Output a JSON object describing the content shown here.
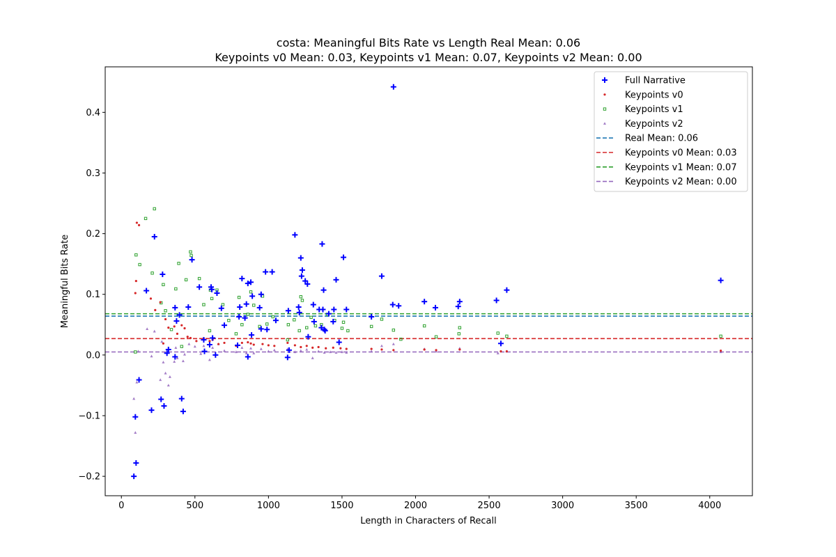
{
  "chart_data": {
    "type": "scatter",
    "title_line1": "costa: Meaningful Bits Rate vs Length Real Mean: 0.06",
    "title_line2": "Keypoints v0 Mean: 0.03, Keypoints v1 Mean: 0.07, Keypoints v2 Mean: 0.00",
    "xlabel": "Length in Characters of Recall",
    "ylabel": "Meaningful Bits Rate",
    "xlim": [
      -110,
      4290
    ],
    "ylim": [
      -0.232,
      0.475
    ],
    "xticks": [
      0,
      500,
      1000,
      1500,
      2000,
      2500,
      3000,
      3500,
      4000
    ],
    "xtick_labels": [
      "0",
      "500",
      "1000",
      "1500",
      "2000",
      "2500",
      "3000",
      "3500",
      "4000"
    ],
    "yticks": [
      -0.2,
      -0.1,
      0.0,
      0.1,
      0.2,
      0.3,
      0.4
    ],
    "ytick_labels": [
      "−0.2",
      "−0.1",
      "0.0",
      "0.1",
      "0.2",
      "0.3",
      "0.4"
    ],
    "grid": false,
    "legend_position": "top-right",
    "series": [
      {
        "name": "Full Narrative",
        "marker": "plus",
        "color": "#0000ff",
        "points": [
          [
            85,
            -0.2
          ],
          [
            100,
            -0.178
          ],
          [
            95,
            -0.102
          ],
          [
            120,
            -0.041
          ],
          [
            170,
            0.106
          ],
          [
            205,
            -0.091
          ],
          [
            225,
            0.195
          ],
          [
            270,
            -0.073
          ],
          [
            280,
            0.133
          ],
          [
            290,
            -0.084
          ],
          [
            310,
            0.003
          ],
          [
            320,
            0.009
          ],
          [
            365,
            0.078
          ],
          [
            365,
            -0.003
          ],
          [
            375,
            0.056
          ],
          [
            395,
            0.066
          ],
          [
            410,
            -0.072
          ],
          [
            420,
            -0.093
          ],
          [
            455,
            0.079
          ],
          [
            480,
            0.157
          ],
          [
            530,
            0.112
          ],
          [
            560,
            0.025
          ],
          [
            565,
            0.006
          ],
          [
            600,
            0.017
          ],
          [
            610,
            0.112
          ],
          [
            615,
            0.108
          ],
          [
            620,
            0.028
          ],
          [
            640,
            0.0
          ],
          [
            650,
            0.102
          ],
          [
            680,
            0.077
          ],
          [
            700,
            0.049
          ],
          [
            790,
            0.016
          ],
          [
            800,
            0.063
          ],
          [
            805,
            0.079
          ],
          [
            820,
            0.126
          ],
          [
            840,
            0.061
          ],
          [
            850,
            0.084
          ],
          [
            860,
            0.118
          ],
          [
            860,
            -0.003
          ],
          [
            880,
            0.12
          ],
          [
            885,
            0.033
          ],
          [
            890,
            0.097
          ],
          [
            940,
            0.078
          ],
          [
            950,
            0.043
          ],
          [
            950,
            0.1
          ],
          [
            980,
            0.137
          ],
          [
            990,
            0.042
          ],
          [
            1025,
            0.137
          ],
          [
            1050,
            0.057
          ],
          [
            1130,
            -0.004
          ],
          [
            1135,
            0.073
          ],
          [
            1140,
            0.008
          ],
          [
            1180,
            0.198
          ],
          [
            1205,
            0.079
          ],
          [
            1210,
            0.07
          ],
          [
            1220,
            0.16
          ],
          [
            1225,
            0.13
          ],
          [
            1230,
            0.14
          ],
          [
            1250,
            0.122
          ],
          [
            1265,
            0.117
          ],
          [
            1270,
            0.03
          ],
          [
            1305,
            0.083
          ],
          [
            1310,
            0.055
          ],
          [
            1345,
            0.075
          ],
          [
            1360,
            0.045
          ],
          [
            1365,
            0.183
          ],
          [
            1370,
            0.075
          ],
          [
            1375,
            0.107
          ],
          [
            1380,
            0.042
          ],
          [
            1385,
            0.04
          ],
          [
            1410,
            0.068
          ],
          [
            1440,
            0.055
          ],
          [
            1445,
            0.075
          ],
          [
            1460,
            0.124
          ],
          [
            1480,
            0.021
          ],
          [
            1510,
            0.161
          ],
          [
            1530,
            0.075
          ],
          [
            1700,
            0.063
          ],
          [
            1770,
            0.13
          ],
          [
            1845,
            0.083
          ],
          [
            1850,
            0.442
          ],
          [
            1885,
            0.081
          ],
          [
            2060,
            0.088
          ],
          [
            2135,
            0.078
          ],
          [
            2290,
            0.08
          ],
          [
            2300,
            0.088
          ],
          [
            2550,
            0.09
          ],
          [
            2580,
            0.019
          ],
          [
            2620,
            0.107
          ],
          [
            4075,
            0.123
          ]
        ]
      },
      {
        "name": "Keypoints v0",
        "marker": "dot",
        "color": "#d62728",
        "points": [
          [
            95,
            0.102
          ],
          [
            100,
            0.122
          ],
          [
            105,
            0.218
          ],
          [
            120,
            0.214
          ],
          [
            200,
            0.093
          ],
          [
            230,
            0.074
          ],
          [
            265,
            0.087
          ],
          [
            285,
            0.019
          ],
          [
            300,
            0.059
          ],
          [
            320,
            0.045
          ],
          [
            360,
            0.047
          ],
          [
            380,
            0.035
          ],
          [
            410,
            0.049
          ],
          [
            430,
            0.044
          ],
          [
            450,
            0.03
          ],
          [
            470,
            0.028
          ],
          [
            510,
            0.023
          ],
          [
            560,
            0.027
          ],
          [
            600,
            0.023
          ],
          [
            620,
            0.025
          ],
          [
            660,
            0.018
          ],
          [
            700,
            0.02
          ],
          [
            780,
            0.015
          ],
          [
            820,
            0.02
          ],
          [
            860,
            0.021
          ],
          [
            880,
            0.019
          ],
          [
            900,
            0.017
          ],
          [
            960,
            0.018
          ],
          [
            1000,
            0.016
          ],
          [
            1040,
            0.015
          ],
          [
            1130,
            0.02
          ],
          [
            1180,
            0.016
          ],
          [
            1220,
            0.013
          ],
          [
            1260,
            0.015
          ],
          [
            1300,
            0.012
          ],
          [
            1340,
            0.013
          ],
          [
            1390,
            0.011
          ],
          [
            1440,
            0.012
          ],
          [
            1490,
            0.011
          ],
          [
            1530,
            0.01
          ],
          [
            1700,
            0.01
          ],
          [
            1770,
            0.009
          ],
          [
            1850,
            0.008
          ],
          [
            2060,
            0.009
          ],
          [
            2140,
            0.008
          ],
          [
            2300,
            0.009
          ],
          [
            2580,
            0.006
          ],
          [
            2620,
            0.006
          ],
          [
            4075,
            0.007
          ]
        ]
      },
      {
        "name": "Keypoints v1",
        "marker": "square",
        "color": "#2ca02c",
        "points": [
          [
            95,
            0.005
          ],
          [
            100,
            0.165
          ],
          [
            125,
            0.149
          ],
          [
            165,
            0.225
          ],
          [
            210,
            0.135
          ],
          [
            225,
            0.241
          ],
          [
            270,
            0.086
          ],
          [
            285,
            0.116
          ],
          [
            300,
            0.073
          ],
          [
            340,
            0.042
          ],
          [
            370,
            0.109
          ],
          [
            390,
            0.151
          ],
          [
            410,
            0.014
          ],
          [
            440,
            0.124
          ],
          [
            470,
            0.17
          ],
          [
            475,
            0.164
          ],
          [
            530,
            0.126
          ],
          [
            560,
            0.083
          ],
          [
            600,
            0.04
          ],
          [
            605,
            0.107
          ],
          [
            615,
            0.093
          ],
          [
            650,
            0.107
          ],
          [
            690,
            0.083
          ],
          [
            730,
            0.057
          ],
          [
            780,
            0.035
          ],
          [
            800,
            0.095
          ],
          [
            820,
            0.05
          ],
          [
            860,
            0.067
          ],
          [
            880,
            0.104
          ],
          [
            900,
            0.082
          ],
          [
            940,
            0.047
          ],
          [
            960,
            0.097
          ],
          [
            990,
            0.051
          ],
          [
            1030,
            0.063
          ],
          [
            1130,
            0.025
          ],
          [
            1135,
            0.05
          ],
          [
            1175,
            0.058
          ],
          [
            1210,
            0.04
          ],
          [
            1220,
            0.096
          ],
          [
            1230,
            0.09
          ],
          [
            1260,
            0.045
          ],
          [
            1290,
            0.062
          ],
          [
            1320,
            0.048
          ],
          [
            1360,
            0.05
          ],
          [
            1400,
            0.067
          ],
          [
            1450,
            0.057
          ],
          [
            1500,
            0.044
          ],
          [
            1510,
            0.054
          ],
          [
            1540,
            0.04
          ],
          [
            1700,
            0.047
          ],
          [
            1770,
            0.059
          ],
          [
            1850,
            0.041
          ],
          [
            1900,
            0.026
          ],
          [
            2060,
            0.048
          ],
          [
            2140,
            0.03
          ],
          [
            2300,
            0.045
          ],
          [
            2295,
            0.035
          ],
          [
            2560,
            0.036
          ],
          [
            2620,
            0.031
          ],
          [
            4075,
            0.031
          ]
        ]
      },
      {
        "name": "Keypoints v2",
        "marker": "triangle",
        "color": "#9467bd",
        "points": [
          [
            85,
            -0.072
          ],
          [
            95,
            -0.128
          ],
          [
            105,
            -0.045
          ],
          [
            115,
            0.006
          ],
          [
            175,
            0.043
          ],
          [
            205,
            -0.002
          ],
          [
            225,
            0.039
          ],
          [
            265,
            -0.041
          ],
          [
            275,
            0.022
          ],
          [
            285,
            -0.012
          ],
          [
            300,
            -0.03
          ],
          [
            320,
            -0.05
          ],
          [
            330,
            -0.036
          ],
          [
            360,
            -0.011
          ],
          [
            370,
            0.012
          ],
          [
            380,
            -0.005
          ],
          [
            420,
            -0.01
          ],
          [
            430,
            0.001
          ],
          [
            460,
            0.018
          ],
          [
            500,
            0.014
          ],
          [
            540,
            0.002
          ],
          [
            560,
            0.015
          ],
          [
            600,
            -0.008
          ],
          [
            620,
            0.012
          ],
          [
            660,
            0.018
          ],
          [
            700,
            0.007
          ],
          [
            780,
            0.005
          ],
          [
            820,
            0.012
          ],
          [
            850,
            0.003
          ],
          [
            880,
            0.011
          ],
          [
            900,
            0.003
          ],
          [
            950,
            0.01
          ],
          [
            1000,
            0.006
          ],
          [
            1040,
            0.008
          ],
          [
            1130,
            0.01
          ],
          [
            1180,
            0.005
          ],
          [
            1220,
            0.007
          ],
          [
            1260,
            0.009
          ],
          [
            1300,
            -0.005
          ],
          [
            1340,
            0.006
          ],
          [
            1380,
            0.004
          ],
          [
            1420,
            0.005
          ],
          [
            1460,
            0.004
          ],
          [
            1500,
            0.005
          ],
          [
            1530,
            0.004
          ],
          [
            1700,
            0.006
          ],
          [
            1770,
            0.015
          ],
          [
            1850,
            0.018
          ],
          [
            2060,
            0.01
          ],
          [
            2140,
            0.006
          ],
          [
            2300,
            0.011
          ],
          [
            2560,
            0.003
          ],
          [
            2620,
            0.006
          ],
          [
            4075,
            0.005
          ]
        ]
      }
    ],
    "mean_lines": [
      {
        "name": "Real Mean: 0.06",
        "value": 0.064,
        "color": "#1f77b4"
      },
      {
        "name": "Keypoints v0 Mean: 0.03",
        "value": 0.027,
        "color": "#d62728"
      },
      {
        "name": "Keypoints v1 Mean: 0.07",
        "value": 0.068,
        "color": "#2ca02c"
      },
      {
        "name": "Keypoints v2 Mean: 0.00",
        "value": 0.005,
        "color": "#9467bd"
      }
    ]
  }
}
